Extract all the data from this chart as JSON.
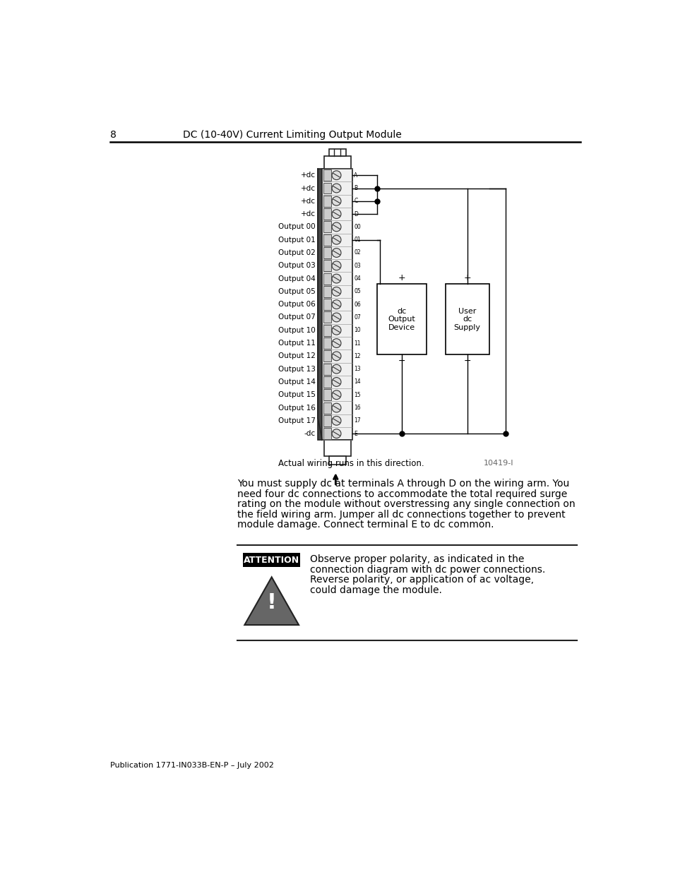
{
  "page_number": "8",
  "header_title": "DC (10-40V) Current Limiting Output Module",
  "footer_text": "Publication 1771-IN033B-EN-P – July 2002",
  "body_text_lines": [
    "You must supply dc at terminals A through D on the wiring arm. You",
    "need four dc connections to accommodate the total required surge",
    "rating on the module without overstressing any single connection on",
    "the field wiring arm. Jumper all dc connections together to prevent",
    "module damage. Connect terminal E to dc common."
  ],
  "attention_title": "ATTENTION",
  "attention_text_lines": [
    "Observe proper polarity, as indicated in the",
    "connection diagram with dc power connections.",
    "Reverse polarity, or application of ac voltage,",
    "could damage the module."
  ],
  "diagram_note": "Actual wiring runs in this direction.",
  "diagram_ref": "10419-I",
  "terminal_labels_left": [
    "+dc",
    "+dc",
    "+dc",
    "+dc",
    "Output 00",
    "Output 01",
    "Output 02",
    "Output 03",
    "Output 04",
    "Output 05",
    "Output 06",
    "Output 07",
    "Output 10",
    "Output 11",
    "Output 12",
    "Output 13",
    "Output 14",
    "Output 15",
    "Output 16",
    "Output 17",
    "-dc"
  ],
  "terminal_labels_right": [
    "A",
    "B",
    "C",
    "D",
    "00",
    "01",
    "02",
    "03",
    "04",
    "05",
    "06",
    "07",
    "10",
    "11",
    "12",
    "13",
    "14",
    "15",
    "16",
    "17",
    "E"
  ],
  "box1_label": "dc\nOutput\nDevice",
  "box2_label": "User\ndc\nSupply",
  "background_color": "#ffffff",
  "text_color": "#000000",
  "line_color": "#000000"
}
